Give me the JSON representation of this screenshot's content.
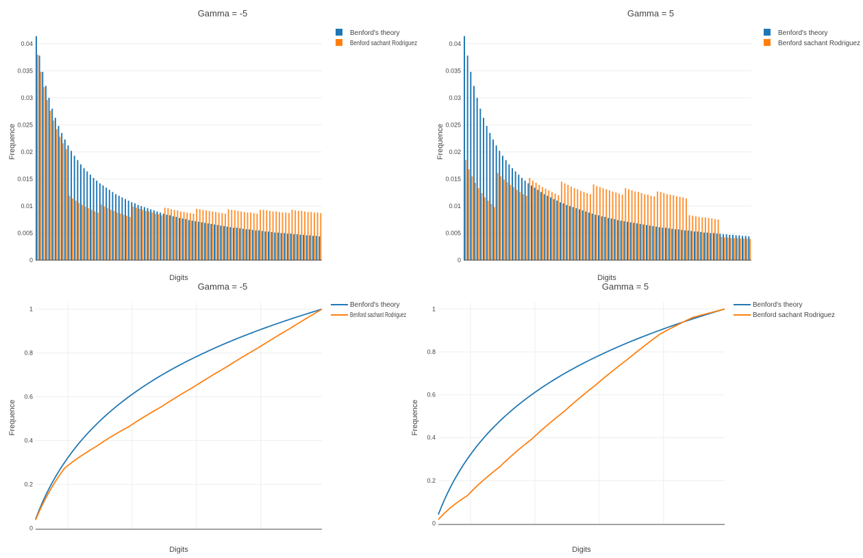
{
  "colors": {
    "theory": "#1f77b4",
    "rodriguez": "#ff7f0e",
    "grid": "#eeeeee",
    "axis": "#444444",
    "text": "#444444"
  },
  "chart_data": [
    {
      "type": "bar",
      "title": "Gamma =  -5",
      "xlabel": "Digits",
      "ylabel": "Frequence",
      "ylim": [
        0,
        0.042
      ],
      "yticks": [
        {
          "v": 0,
          "label": "0"
        },
        {
          "v": 0.005,
          "label": "0.005"
        },
        {
          "v": 0.01,
          "label": "0.01"
        },
        {
          "v": 0.015,
          "label": "0.015"
        },
        {
          "v": 0.02,
          "label": "0.02"
        },
        {
          "v": 0.025,
          "label": "0.025"
        },
        {
          "v": 0.03,
          "label": "0.03"
        },
        {
          "v": 0.035,
          "label": "0.035"
        },
        {
          "v": 0.04,
          "label": "0.04"
        }
      ],
      "legend": "top-right",
      "x": "10-99",
      "series": [
        {
          "name": "Benford's theory",
          "values": [
            0.0414,
            0.0378,
            0.0348,
            0.0322,
            0.03,
            0.028,
            0.0263,
            0.0248,
            0.0235,
            0.0223,
            0.0212,
            0.0202,
            0.0193,
            0.0185,
            0.0177,
            0.017,
            0.0164,
            0.0158,
            0.0152,
            0.0147,
            0.0142,
            0.0138,
            0.0134,
            0.013,
            0.0126,
            0.0122,
            0.0119,
            0.0116,
            0.0113,
            0.011,
            0.0107,
            0.0105,
            0.0102,
            0.01,
            0.0098,
            0.0096,
            0.0094,
            0.0092,
            0.009,
            0.0088,
            0.0086,
            0.0084,
            0.0083,
            0.0081,
            0.008,
            0.0078,
            0.0077,
            0.0076,
            0.0074,
            0.0073,
            0.0072,
            0.0071,
            0.007,
            0.0069,
            0.0068,
            0.0067,
            0.0066,
            0.0065,
            0.0064,
            0.0063,
            0.0062,
            0.0061,
            0.006,
            0.006,
            0.0059,
            0.0058,
            0.0057,
            0.0057,
            0.0056,
            0.0055,
            0.0055,
            0.0054,
            0.0053,
            0.0053,
            0.0052,
            0.0051,
            0.0051,
            0.005,
            0.005,
            0.0049,
            0.0049,
            0.0048,
            0.0048,
            0.0047,
            0.0047,
            0.0046,
            0.0046,
            0.0045,
            0.0045,
            0.0044
          ]
        },
        {
          "name": "Benford sachant Rodriguez",
          "values": [
            0.038,
            0.0348,
            0.032,
            0.0296,
            0.0276,
            0.0258,
            0.0242,
            0.0228,
            0.0216,
            0.0205,
            0.0119,
            0.0114,
            0.011,
            0.0106,
            0.0102,
            0.0099,
            0.0096,
            0.0093,
            0.009,
            0.0088,
            0.0103,
            0.0099,
            0.0096,
            0.0093,
            0.0091,
            0.0088,
            0.0086,
            0.0084,
            0.0082,
            0.008,
            0.0099,
            0.0097,
            0.0095,
            0.0093,
            0.0091,
            0.009,
            0.0088,
            0.0086,
            0.0085,
            0.0083,
            0.0097,
            0.0096,
            0.0094,
            0.0093,
            0.0092,
            0.009,
            0.0089,
            0.0088,
            0.0087,
            0.0086,
            0.0095,
            0.0094,
            0.0093,
            0.0092,
            0.0091,
            0.009,
            0.0089,
            0.0088,
            0.0087,
            0.0086,
            0.0094,
            0.0093,
            0.0092,
            0.0091,
            0.009,
            0.0089,
            0.0088,
            0.0088,
            0.0087,
            0.0086,
            0.0093,
            0.0093,
            0.0092,
            0.0091,
            0.009,
            0.009,
            0.0089,
            0.0088,
            0.0088,
            0.0087,
            0.0093,
            0.0092,
            0.0091,
            0.0091,
            0.009,
            0.0089,
            0.0089,
            0.0088,
            0.0088,
            0.0087
          ]
        }
      ]
    },
    {
      "type": "bar",
      "title": "Gamma =  5",
      "xlabel": "Digits",
      "ylabel": "Frequence",
      "ylim": [
        0,
        0.042
      ],
      "yticks": [
        {
          "v": 0,
          "label": "0"
        },
        {
          "v": 0.005,
          "label": "0.005"
        },
        {
          "v": 0.01,
          "label": "0.01"
        },
        {
          "v": 0.015,
          "label": "0.015"
        },
        {
          "v": 0.02,
          "label": "0.02"
        },
        {
          "v": 0.025,
          "label": "0.025"
        },
        {
          "v": 0.03,
          "label": "0.03"
        },
        {
          "v": 0.035,
          "label": "0.035"
        },
        {
          "v": 0.04,
          "label": "0.04"
        }
      ],
      "legend": "top-right",
      "x": "10-99",
      "series": [
        {
          "name": "Benford's theory",
          "values": [
            0.0414,
            0.0378,
            0.0348,
            0.0322,
            0.03,
            0.028,
            0.0263,
            0.0248,
            0.0235,
            0.0223,
            0.0212,
            0.0202,
            0.0193,
            0.0185,
            0.0177,
            0.017,
            0.0164,
            0.0158,
            0.0152,
            0.0147,
            0.0142,
            0.0138,
            0.0134,
            0.013,
            0.0126,
            0.0122,
            0.0119,
            0.0116,
            0.0113,
            0.011,
            0.0107,
            0.0105,
            0.0102,
            0.01,
            0.0098,
            0.0096,
            0.0094,
            0.0092,
            0.009,
            0.0088,
            0.0086,
            0.0084,
            0.0083,
            0.0081,
            0.008,
            0.0078,
            0.0077,
            0.0076,
            0.0074,
            0.0073,
            0.0072,
            0.0071,
            0.007,
            0.0069,
            0.0068,
            0.0067,
            0.0066,
            0.0065,
            0.0064,
            0.0063,
            0.0062,
            0.0061,
            0.006,
            0.006,
            0.0059,
            0.0058,
            0.0057,
            0.0057,
            0.0056,
            0.0055,
            0.0055,
            0.0054,
            0.0053,
            0.0053,
            0.0052,
            0.0051,
            0.0051,
            0.005,
            0.005,
            0.0049,
            0.0049,
            0.0048,
            0.0048,
            0.0047,
            0.0047,
            0.0046,
            0.0046,
            0.0045,
            0.0045,
            0.0044
          ]
        },
        {
          "name": "Benford sachant Rodriguez",
          "values": [
            0.0185,
            0.0168,
            0.0155,
            0.0143,
            0.0133,
            0.0124,
            0.0116,
            0.011,
            0.0104,
            0.0098,
            0.0161,
            0.0155,
            0.0149,
            0.0144,
            0.0139,
            0.0135,
            0.013,
            0.0126,
            0.0122,
            0.0119,
            0.0152,
            0.0147,
            0.0143,
            0.0139,
            0.0135,
            0.0132,
            0.0129,
            0.0126,
            0.0123,
            0.012,
            0.0145,
            0.0142,
            0.0139,
            0.0136,
            0.0133,
            0.0131,
            0.0128,
            0.0126,
            0.0124,
            0.0122,
            0.014,
            0.0137,
            0.0135,
            0.0133,
            0.0131,
            0.0129,
            0.0127,
            0.0125,
            0.0123,
            0.0121,
            0.0133,
            0.0131,
            0.0129,
            0.0127,
            0.0126,
            0.0124,
            0.0122,
            0.0121,
            0.0119,
            0.0118,
            0.0127,
            0.0126,
            0.0124,
            0.0122,
            0.0121,
            0.012,
            0.0118,
            0.0117,
            0.0116,
            0.0114,
            0.0083,
            0.0082,
            0.0081,
            0.008,
            0.0079,
            0.0079,
            0.0078,
            0.0077,
            0.0076,
            0.0075,
            0.0043,
            0.0042,
            0.0042,
            0.0041,
            0.0041,
            0.0041,
            0.004,
            0.004,
            0.004,
            0.0039
          ]
        }
      ]
    },
    {
      "type": "line",
      "title": "Gamma =  -5",
      "xlabel": "Digits",
      "ylabel": "Frequence",
      "ylim": [
        -0.005,
        1.03
      ],
      "yticks": [
        {
          "v": 0,
          "label": "0"
        },
        {
          "v": 0.2,
          "label": "0.2"
        },
        {
          "v": 0.4,
          "label": "0.4"
        },
        {
          "v": 0.6,
          "label": "0.6"
        },
        {
          "v": 0.8,
          "label": "0.8"
        },
        {
          "v": 1,
          "label": "1"
        }
      ],
      "legend": "top-right",
      "x": "10-99",
      "series": [
        {
          "name": "Benford's theory",
          "kind": "cumulative",
          "of_chart": 0,
          "of_series": 0
        },
        {
          "name": "Benford sachant Rodriguez",
          "kind": "cumulative",
          "of_chart": 0,
          "of_series": 1
        }
      ]
    },
    {
      "type": "line",
      "title": "Gamma =  5",
      "xlabel": "Digits",
      "ylabel": "Frequence",
      "ylim": [
        -0.005,
        1.03
      ],
      "yticks": [
        {
          "v": 0,
          "label": "0"
        },
        {
          "v": 0.2,
          "label": "0.2"
        },
        {
          "v": 0.4,
          "label": "0.4"
        },
        {
          "v": 0.6,
          "label": "0.6"
        },
        {
          "v": 0.8,
          "label": "0.8"
        },
        {
          "v": 1,
          "label": "1"
        }
      ],
      "legend": "top-right",
      "x": "10-99",
      "series": [
        {
          "name": "Benford's theory",
          "kind": "cumulative",
          "of_chart": 1,
          "of_series": 0
        },
        {
          "name": "Benford sachant Rodriguez",
          "kind": "cumulative",
          "of_chart": 1,
          "of_series": 1
        }
      ]
    }
  ]
}
